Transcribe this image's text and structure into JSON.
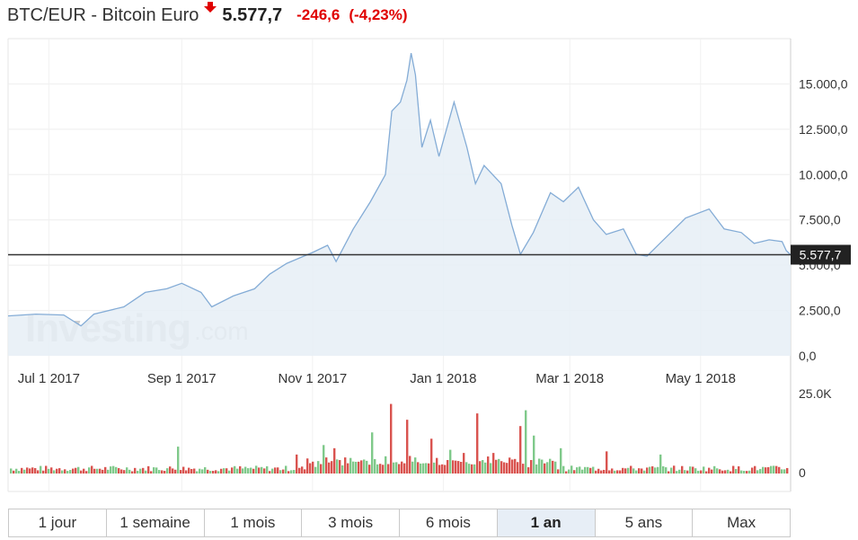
{
  "header": {
    "title": "BTC/EUR - Bitcoin Euro",
    "price": "5.577,7",
    "change": "-246,6",
    "change_pct": "(-4,23%)",
    "down_color": "#e00000"
  },
  "tabs": [
    {
      "label": "1 jour",
      "active": false
    },
    {
      "label": "1 semaine",
      "active": false
    },
    {
      "label": "1 mois",
      "active": false
    },
    {
      "label": "3 mois",
      "active": false
    },
    {
      "label": "6 mois",
      "active": false
    },
    {
      "label": "1 an",
      "active": true
    },
    {
      "label": "5 ans",
      "active": false
    },
    {
      "label": "Max",
      "active": false
    }
  ],
  "watermark": {
    "brand": "Investing",
    "suffix": ".com"
  },
  "chart_data": {
    "type": "area",
    "title": "BTC/EUR - Bitcoin Euro",
    "x_tick_labels": [
      "Jul 1 2017",
      "Sep 1 2017",
      "Nov 1 2017",
      "Jan 1 2018",
      "Mar 1 2018",
      "May 1 2018"
    ],
    "y_tick_labels": [
      "0,0",
      "2.500,0",
      "5.000,0",
      "7.500,0",
      "10.000,0",
      "12.500,0",
      "15.000,0"
    ],
    "ylim": [
      0,
      17500
    ],
    "x_range": [
      "2017-06-12",
      "2018-06-12"
    ],
    "current_value": 5577.7,
    "current_label": "5.577,7",
    "grid": true,
    "line_color": "#84acd6",
    "fill_color": "#e6eef6",
    "series": [
      {
        "values": [
          [
            "2017-06-12",
            2200
          ],
          [
            "2017-06-25",
            2300
          ],
          [
            "2017-07-08",
            2250
          ],
          [
            "2017-07-16",
            1650
          ],
          [
            "2017-07-22",
            2300
          ],
          [
            "2017-08-05",
            2700
          ],
          [
            "2017-08-15",
            3500
          ],
          [
            "2017-08-25",
            3700
          ],
          [
            "2017-09-01",
            4000
          ],
          [
            "2017-09-10",
            3500
          ],
          [
            "2017-09-15",
            2700
          ],
          [
            "2017-09-25",
            3300
          ],
          [
            "2017-10-05",
            3700
          ],
          [
            "2017-10-12",
            4500
          ],
          [
            "2017-10-20",
            5100
          ],
          [
            "2017-11-01",
            5700
          ],
          [
            "2017-11-08",
            6100
          ],
          [
            "2017-11-12",
            5200
          ],
          [
            "2017-11-20",
            7000
          ],
          [
            "2017-11-28",
            8500
          ],
          [
            "2017-12-05",
            10000
          ],
          [
            "2017-12-08",
            13500
          ],
          [
            "2017-12-12",
            14000
          ],
          [
            "2017-12-15",
            15200
          ],
          [
            "2017-12-17",
            16700
          ],
          [
            "2017-12-19",
            15500
          ],
          [
            "2017-12-22",
            11500
          ],
          [
            "2017-12-26",
            13000
          ],
          [
            "2017-12-30",
            11000
          ],
          [
            "2018-01-06",
            14000
          ],
          [
            "2018-01-12",
            11500
          ],
          [
            "2018-01-16",
            9500
          ],
          [
            "2018-01-20",
            10500
          ],
          [
            "2018-01-28",
            9500
          ],
          [
            "2018-02-02",
            7200
          ],
          [
            "2018-02-06",
            5600
          ],
          [
            "2018-02-12",
            6800
          ],
          [
            "2018-02-20",
            9000
          ],
          [
            "2018-02-26",
            8500
          ],
          [
            "2018-03-05",
            9300
          ],
          [
            "2018-03-12",
            7500
          ],
          [
            "2018-03-18",
            6700
          ],
          [
            "2018-03-26",
            7000
          ],
          [
            "2018-04-01",
            5600
          ],
          [
            "2018-04-06",
            5500
          ],
          [
            "2018-04-12",
            6200
          ],
          [
            "2018-04-18",
            6900
          ],
          [
            "2018-04-24",
            7600
          ],
          [
            "2018-05-05",
            8100
          ],
          [
            "2018-05-12",
            7000
          ],
          [
            "2018-05-20",
            6800
          ],
          [
            "2018-05-26",
            6200
          ],
          [
            "2018-06-02",
            6400
          ],
          [
            "2018-06-08",
            6300
          ],
          [
            "2018-06-10",
            5800
          ],
          [
            "2018-06-12",
            5577.7
          ]
        ]
      }
    ],
    "volume": {
      "y_tick_labels": [
        "0",
        "25.0K"
      ],
      "ylim": [
        0,
        25000
      ],
      "up_color": "#7fc98a",
      "down_color": "#d9534f",
      "peaks": [
        [
          "2017-12-07",
          22000,
          "down"
        ],
        [
          "2017-12-15",
          17000,
          "down"
        ],
        [
          "2018-01-16",
          19000,
          "down"
        ],
        [
          "2018-02-05",
          15000,
          "down"
        ],
        [
          "2018-02-08",
          20000,
          "up"
        ],
        [
          "2018-02-12",
          12000,
          "up"
        ],
        [
          "2017-11-28",
          13000,
          "up"
        ],
        [
          "2017-12-26",
          11000,
          "down"
        ],
        [
          "2018-01-04",
          7500,
          "up"
        ],
        [
          "2018-02-24",
          8000,
          "up"
        ],
        [
          "2017-11-11",
          8000,
          "down"
        ],
        [
          "2017-11-06",
          9000,
          "up"
        ],
        [
          "2017-08-30",
          8500,
          "up"
        ],
        [
          "2018-03-18",
          7000,
          "down"
        ],
        [
          "2018-01-10",
          6500,
          "down"
        ],
        [
          "2018-01-24",
          6500,
          "down"
        ],
        [
          "2017-10-24",
          6000,
          "down"
        ],
        [
          "2018-04-12",
          6000,
          "up"
        ],
        [
          "2018-06-12",
          3500,
          "down"
        ]
      ]
    }
  }
}
